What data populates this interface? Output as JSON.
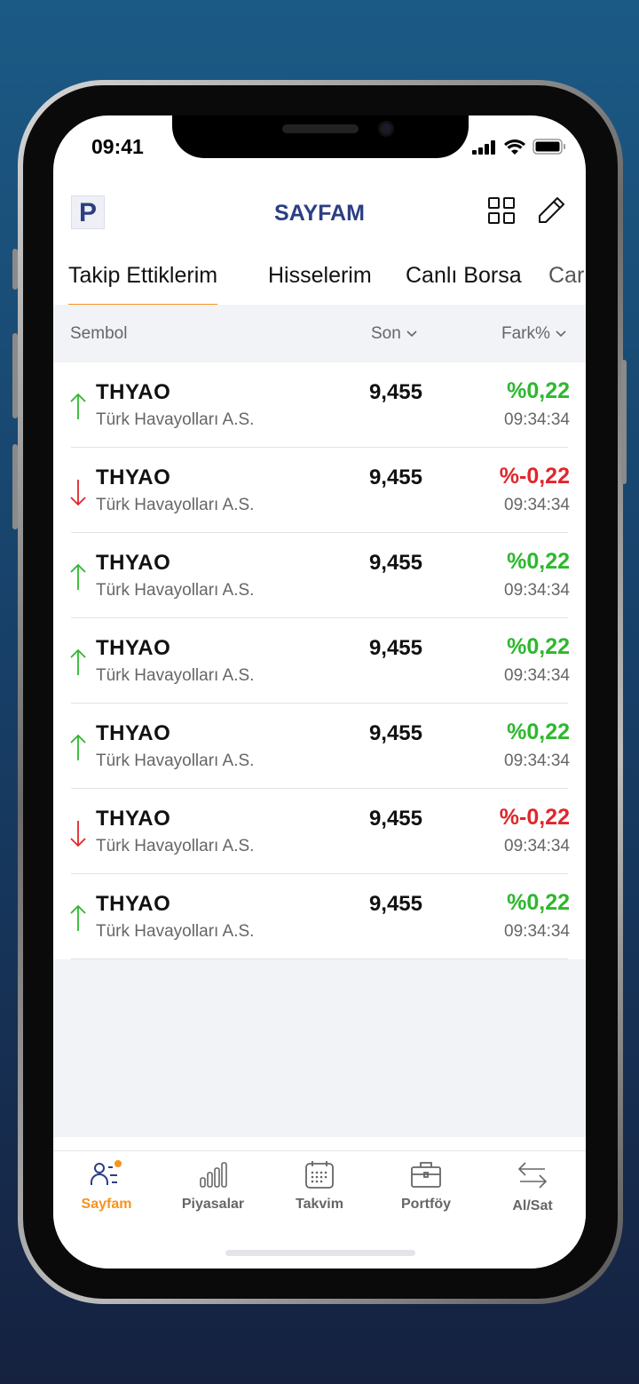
{
  "status_bar": {
    "time": "09:41"
  },
  "header": {
    "logo": "P",
    "title": "SAYFAM"
  },
  "tabs": [
    {
      "label": "Takip Ettiklerim",
      "active": true
    },
    {
      "label": "Hisselerim"
    },
    {
      "label": "Canlı Borsa"
    },
    {
      "label": "Car"
    }
  ],
  "columns": {
    "symbol": "Sembol",
    "last": "Son",
    "change": "Fark%"
  },
  "colors": {
    "accent": "#f7931e",
    "brand": "#2b3f82",
    "up": "#2db82d",
    "down": "#e0262c"
  },
  "rows": [
    {
      "symbol": "THYAO",
      "name": "Türk Havayolları A.S.",
      "price": "9,455",
      "change": "%0,22",
      "time": "09:34:34",
      "direction": "up"
    },
    {
      "symbol": "THYAO",
      "name": "Türk Havayolları A.S.",
      "price": "9,455",
      "change": "%-0,22",
      "time": "09:34:34",
      "direction": "down"
    },
    {
      "symbol": "THYAO",
      "name": "Türk Havayolları A.S.",
      "price": "9,455",
      "change": "%0,22",
      "time": "09:34:34",
      "direction": "up"
    },
    {
      "symbol": "THYAO",
      "name": "Türk Havayolları A.S.",
      "price": "9,455",
      "change": "%0,22",
      "time": "09:34:34",
      "direction": "up"
    },
    {
      "symbol": "THYAO",
      "name": "Türk Havayolları A.S.",
      "price": "9,455",
      "change": "%0,22",
      "time": "09:34:34",
      "direction": "up"
    },
    {
      "symbol": "THYAO",
      "name": "Türk Havayolları A.S.",
      "price": "9,455",
      "change": "%-0,22",
      "time": "09:34:34",
      "direction": "down"
    },
    {
      "symbol": "THYAO",
      "name": "Türk Havayolları A.S.",
      "price": "9,455",
      "change": "%0,22",
      "time": "09:34:34",
      "direction": "up"
    }
  ],
  "tabbar": [
    {
      "label": "Sayfam",
      "icon": "user-list-icon",
      "active": true
    },
    {
      "label": "Piyasalar",
      "icon": "bar-chart-icon"
    },
    {
      "label": "Takvim",
      "icon": "calendar-icon"
    },
    {
      "label": "Portföy",
      "icon": "briefcase-icon"
    },
    {
      "label": "Al/Sat",
      "icon": "swap-arrows-icon"
    }
  ]
}
